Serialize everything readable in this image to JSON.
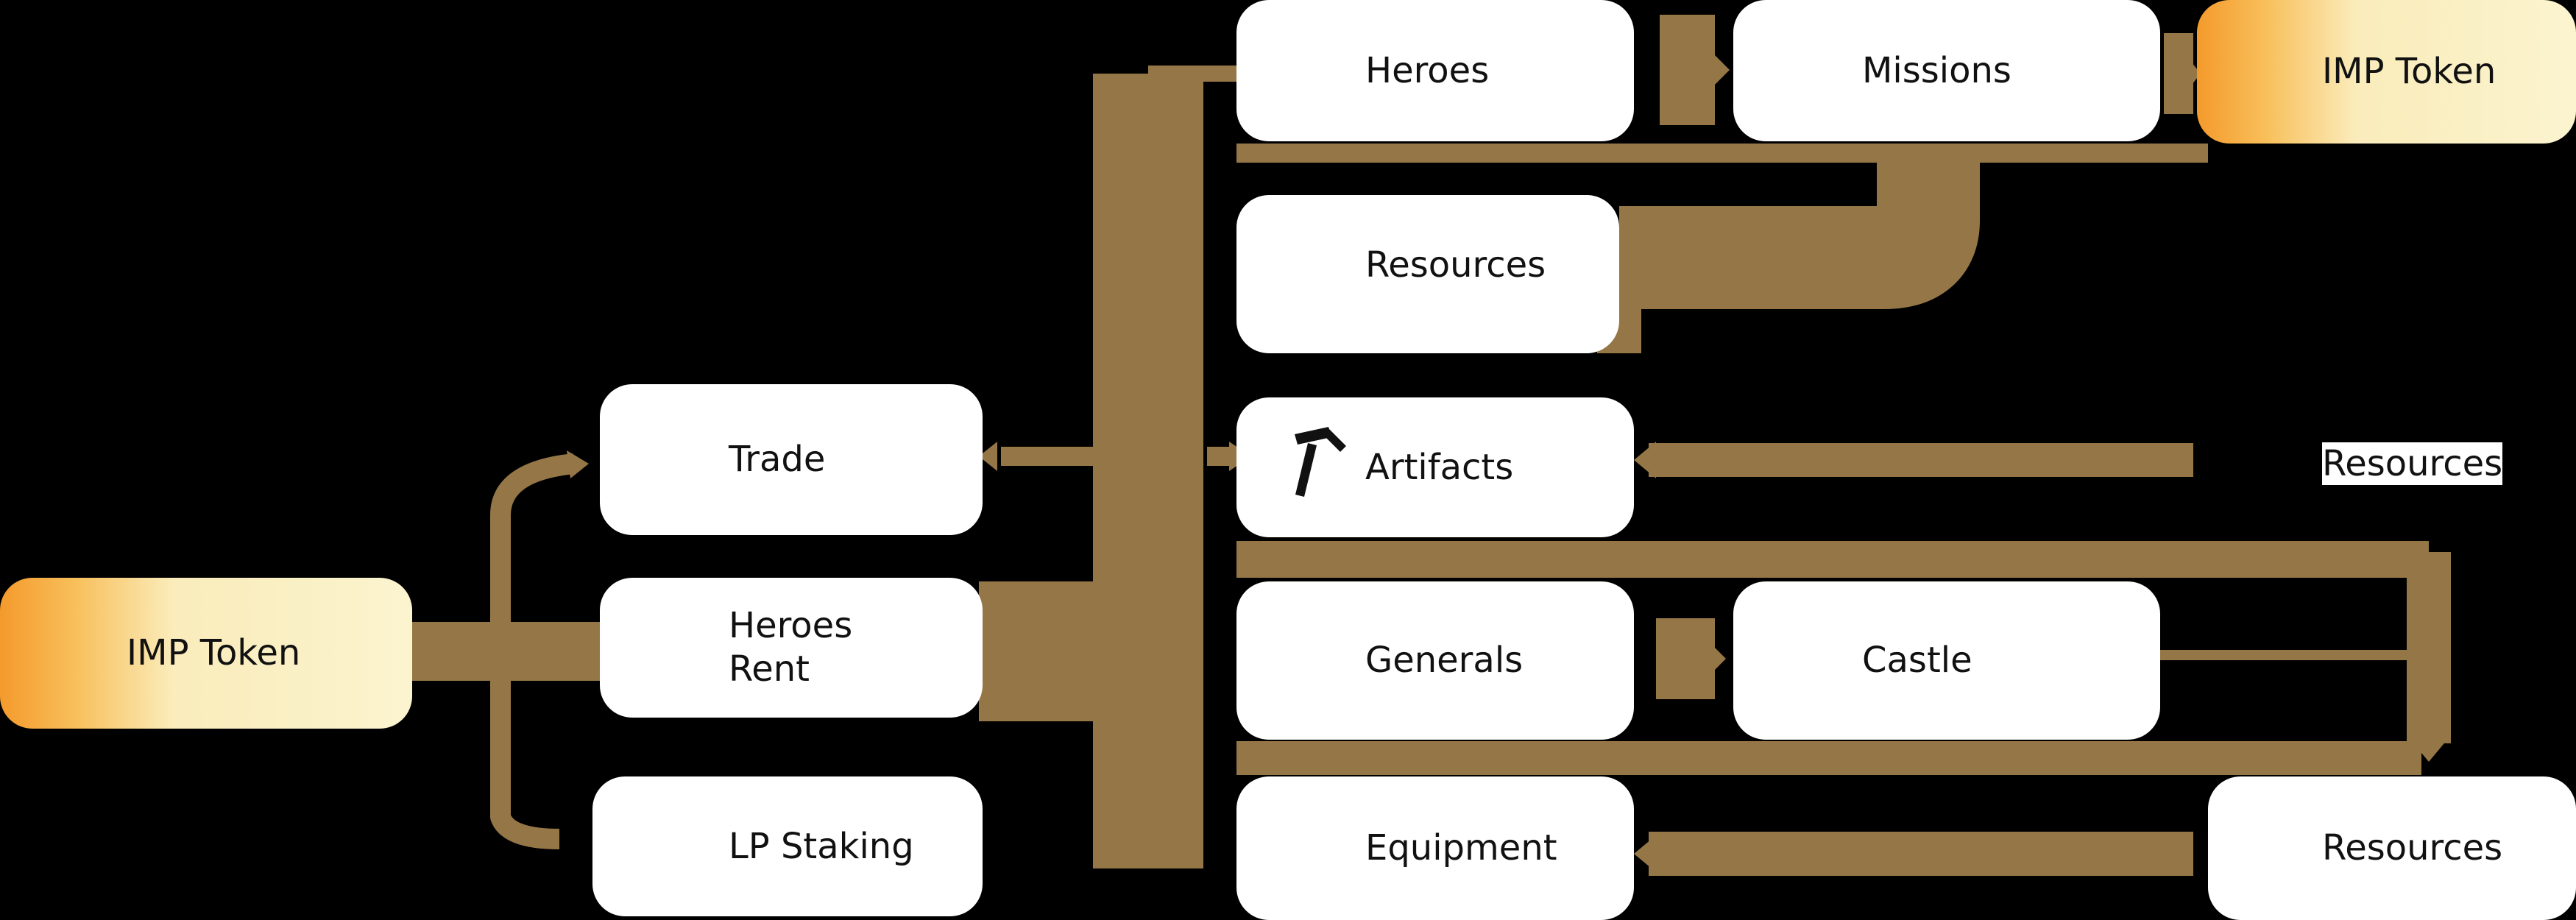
{
  "diagram": {
    "colors": {
      "background": "#000000",
      "box": "#ffffff",
      "edge": "#957647",
      "token_gradient_start": "#f49a2c",
      "token_gradient_end": "#fbf4cf"
    },
    "nodes": {
      "imp_token_left": "IMP Token",
      "trade": "Trade",
      "heroes_rent": "Heroes\nRent",
      "lp_staking": "LP Staking",
      "heroes": "Heroes",
      "missions": "Missions",
      "imp_token_right": "IMP Token",
      "resources_1": "Resources",
      "artifacts": "Artifacts",
      "generals": "Generals",
      "castle": "Castle",
      "equipment": "Equipment",
      "resources_2": "Resources",
      "resources_3": "Resources"
    },
    "edges": [
      {
        "from": "imp_token_left",
        "to": "trade"
      },
      {
        "from": "imp_token_left",
        "to": "heroes_rent"
      },
      {
        "from": "imp_token_left",
        "to": "lp_staking"
      },
      {
        "from": "heroes_rent",
        "to": "heroes"
      },
      {
        "from": "heroes_rent",
        "to": "trade"
      },
      {
        "from": "heroes_rent",
        "to": "equipment"
      },
      {
        "from": "heroes",
        "to": "missions"
      },
      {
        "from": "missions",
        "to": "imp_token_right"
      },
      {
        "from": "missions",
        "to": "resources_1"
      },
      {
        "from": "heroes",
        "to": "resources_2"
      },
      {
        "from": "resources_2",
        "to": "artifacts"
      },
      {
        "from": "generals",
        "to": "castle"
      },
      {
        "from": "castle",
        "to": "resources_3"
      },
      {
        "from": "resources_3",
        "to": "equipment"
      }
    ]
  }
}
